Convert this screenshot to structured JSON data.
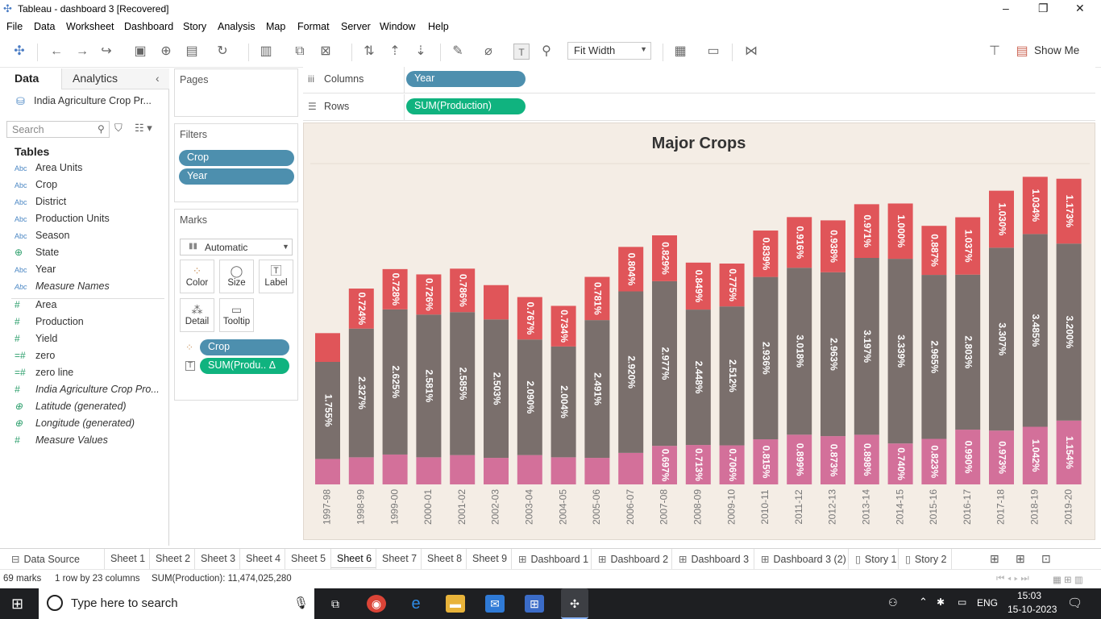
{
  "window": {
    "title": "Tableau - dashboard 3 [Recovered]",
    "min": "–",
    "restore": "❐",
    "close": "✕"
  },
  "menu": [
    "File",
    "Data",
    "Worksheet",
    "Dashboard",
    "Story",
    "Analysis",
    "Map",
    "Format",
    "Server",
    "Window",
    "Help"
  ],
  "toolbar": {
    "fit": "Fit Width",
    "show_me": "Show Me"
  },
  "left_pane": {
    "tab_data": "Data",
    "tab_analytics": "Analytics",
    "datasource": "India Agriculture Crop Pr...",
    "search_placeholder": "Search",
    "tables_title": "Tables",
    "fields": [
      {
        "type": "Abc",
        "name": "Area Units"
      },
      {
        "type": "Abc",
        "name": "Crop"
      },
      {
        "type": "Abc",
        "name": "District"
      },
      {
        "type": "Abc",
        "name": "Production Units"
      },
      {
        "type": "Abc",
        "name": "Season"
      },
      {
        "type": "⊕",
        "name": "State"
      },
      {
        "type": "Abc",
        "name": "Year"
      },
      {
        "type": "Abc",
        "name": "Measure Names"
      },
      {
        "type": "#",
        "name": "Area"
      },
      {
        "type": "#",
        "name": "Production"
      },
      {
        "type": "#",
        "name": "Yield"
      },
      {
        "type": "=#",
        "name": "zero"
      },
      {
        "type": "=#",
        "name": "zero line"
      },
      {
        "type": "#",
        "name": "India Agriculture Crop Pro..."
      },
      {
        "type": "⊕",
        "name": "Latitude (generated)"
      },
      {
        "type": "⊕",
        "name": "Longitude (generated)"
      },
      {
        "type": "#",
        "name": "Measure Values"
      }
    ]
  },
  "pages": {
    "title": "Pages"
  },
  "filters": {
    "title": "Filters",
    "items": [
      "Crop",
      "Year"
    ]
  },
  "marks": {
    "title": "Marks",
    "type": "Automatic",
    "buttons": [
      "Color",
      "Size",
      "Label",
      "Detail",
      "Tooltip"
    ],
    "pills": [
      "Crop",
      "SUM(Produ..  Δ"
    ]
  },
  "shelves": {
    "columns_label": "Columns",
    "columns_pill": "Year",
    "rows_label": "Rows",
    "rows_pill": "SUM(Production)"
  },
  "chart_data": {
    "type": "bar",
    "title": "Major Crops",
    "stacked": true,
    "categories": [
      "1997-98",
      "1998-99",
      "1999-00",
      "2000-01",
      "2001-02",
      "2002-03",
      "2003-04",
      "2004-05",
      "2005-06",
      "2006-07",
      "2007-08",
      "2008-09",
      "2009-10",
      "2010-11",
      "2011-12",
      "2012-13",
      "2013-14",
      "2014-15",
      "2015-16",
      "2016-17",
      "2017-18",
      "2018-19",
      "2019-20"
    ],
    "series": [
      {
        "name": "bottom (pink)",
        "color": "#d3709a",
        "values": [
          0.46,
          0.49,
          0.54,
          0.49,
          0.53,
          0.48,
          0.53,
          0.49,
          0.48,
          0.57,
          0.697,
          0.713,
          0.706,
          0.815,
          0.899,
          0.873,
          0.898,
          0.74,
          0.823,
          0.99,
          0.973,
          1.042,
          1.154
        ],
        "labels": [
          "",
          "",
          "",
          "",
          "",
          "",
          "",
          "",
          "",
          "",
          "0.697%",
          "0.713%",
          "0.706%",
          "0.815%",
          "0.899%",
          "0.873%",
          "0.898%",
          "0.740%",
          "0.823%",
          "0.990%",
          "0.973%",
          "1.042%",
          "1.154%"
        ]
      },
      {
        "name": "middle (gray)",
        "color": "#7a6f6c",
        "values": [
          1.755,
          2.327,
          2.625,
          2.581,
          2.585,
          2.503,
          2.09,
          2.004,
          2.491,
          2.92,
          2.977,
          2.448,
          2.512,
          2.936,
          3.018,
          2.963,
          3.197,
          3.339,
          2.965,
          2.803,
          3.307,
          3.485,
          3.2
        ],
        "labels": [
          "1.755%",
          "2.327%",
          "2.625%",
          "2.581%",
          "2.585%",
          "2.503%",
          "2.090%",
          "2.004%",
          "2.491%",
          "2.920%",
          "2.977%",
          "2.448%",
          "2.512%",
          "2.936%",
          "3.018%",
          "2.963%",
          "3.197%",
          "3.339%",
          "2.965%",
          "2.803%",
          "3.307%",
          "3.485%",
          "3.200%"
        ]
      },
      {
        "name": "top (red)",
        "color": "#e05559",
        "values": [
          0.52,
          0.724,
          0.728,
          0.726,
          0.786,
          0.62,
          0.767,
          0.734,
          0.781,
          0.804,
          0.829,
          0.849,
          0.775,
          0.839,
          0.916,
          0.938,
          0.971,
          1.0,
          0.887,
          1.037,
          1.03,
          1.034,
          1.173
        ],
        "labels": [
          "",
          "0.724%",
          "0.728%",
          "0.726%",
          "0.786%",
          "",
          "0.767%",
          "0.734%",
          "0.781%",
          "0.804%",
          "0.829%",
          "0.849%",
          "0.775%",
          "0.839%",
          "0.916%",
          "0.938%",
          "0.971%",
          "1.000%",
          "0.887%",
          "1.037%",
          "1.030%",
          "1.034%",
          "1.173%"
        ]
      }
    ],
    "ylim": [
      0,
      5.8
    ]
  },
  "sheet_tabs": [
    {
      "label": "Data Source",
      "icon": "⊟"
    },
    {
      "label": "Sheet 1",
      "icon": ""
    },
    {
      "label": "Sheet 2",
      "icon": ""
    },
    {
      "label": "Sheet 3",
      "icon": ""
    },
    {
      "label": "Sheet 4",
      "icon": ""
    },
    {
      "label": "Sheet 5",
      "icon": ""
    },
    {
      "label": "Sheet 6",
      "icon": ""
    },
    {
      "label": "Sheet 7",
      "icon": ""
    },
    {
      "label": "Sheet 8",
      "icon": ""
    },
    {
      "label": "Sheet 9",
      "icon": ""
    },
    {
      "label": "Dashboard 1",
      "icon": "⊞"
    },
    {
      "label": "Dashboard 2",
      "icon": "⊞"
    },
    {
      "label": "Dashboard 3",
      "icon": "⊞"
    },
    {
      "label": "Dashboard 3 (2)",
      "icon": "⊞"
    },
    {
      "label": "Story 1",
      "icon": "▯"
    },
    {
      "label": "Story 2",
      "icon": "▯"
    }
  ],
  "active_sheet": "Sheet 6",
  "status": {
    "marks": "69 marks",
    "dims": "1 row by 23 columns",
    "sum": "SUM(Production): 11,474,025,280"
  },
  "taskbar": {
    "search_placeholder": "Type here to search",
    "lang": "ENG",
    "time": "15:03",
    "date": "15-10-2023"
  }
}
